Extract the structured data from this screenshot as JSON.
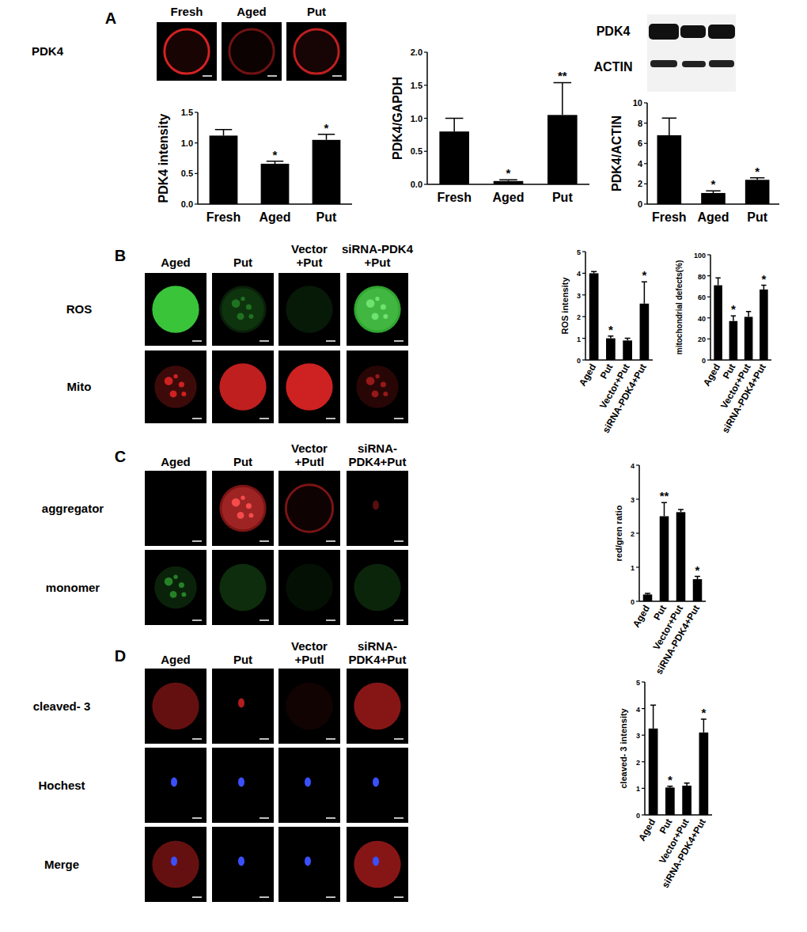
{
  "chart_data": [
    {
      "type": "bar",
      "y_label": "PDK4 intensity",
      "categories": [
        "Fresh",
        "Aged",
        "Put"
      ],
      "values": [
        1.12,
        0.66,
        1.05
      ],
      "errors": [
        0.1,
        0.04,
        0.09
      ],
      "significance": [
        null,
        "*",
        "*"
      ],
      "color": "#000000",
      "ylim": [
        0,
        1.5
      ],
      "yticks": [
        {
          "value": 0,
          "label": "0.0"
        },
        0.5,
        {
          "value": 1,
          "label": "1.0"
        },
        1.5
      ]
    },
    {
      "type": "bar",
      "y_label": "PDK4/GAPDH",
      "categories": [
        "Fresh",
        "Aged",
        "Put"
      ],
      "values": [
        0.8,
        0.05,
        1.05
      ],
      "errors": [
        0.2,
        0.02,
        0.49
      ],
      "significance": [
        null,
        "*",
        "**"
      ],
      "color": "#000000",
      "ylim": [
        0,
        2
      ],
      "yticks": [
        {
          "value": 0,
          "label": "0.0"
        },
        0.5,
        {
          "value": 1,
          "label": "1.0"
        },
        1.5,
        {
          "value": 2,
          "label": "2.0"
        }
      ]
    },
    {
      "type": "bar",
      "y_label": "PDK4/ACTIN",
      "categories": [
        "Fresh",
        "Aged",
        "Put"
      ],
      "values": [
        6.8,
        1.1,
        2.4
      ],
      "errors": [
        1.7,
        0.2,
        0.2
      ],
      "significance": [
        null,
        "*",
        "*"
      ],
      "color": "#000000",
      "ylim": [
        0,
        10
      ],
      "yticks": [
        0,
        2,
        4,
        6,
        8,
        10
      ]
    },
    {
      "type": "bar",
      "y_label": "ROS intensity",
      "categories": [
        "Aged",
        "Put",
        "Vector+Put",
        "siRNA-PDK4+Put"
      ],
      "values": [
        4.0,
        1.0,
        0.9,
        2.6
      ],
      "errors": [
        0.08,
        0.1,
        0.1,
        1.0
      ],
      "significance": [
        null,
        "*",
        null,
        "*"
      ],
      "color": "#000000",
      "ylim": [
        0,
        5
      ],
      "yticks": [
        0,
        1,
        2,
        3,
        4,
        5
      ]
    },
    {
      "type": "bar",
      "y_label": "mitochondrial defects(%)",
      "categories": [
        "Aged",
        "Put",
        "Vector+Put",
        "siRNA-PDK4+Put"
      ],
      "values": [
        71,
        37,
        41,
        67
      ],
      "errors": [
        7,
        5,
        5,
        4
      ],
      "significance": [
        null,
        "*",
        null,
        "*"
      ],
      "color": "#000000",
      "ylim": [
        0,
        100
      ],
      "yticks": [
        0,
        20,
        40,
        60,
        80,
        100
      ]
    },
    {
      "type": "bar",
      "y_label": "red/gren ratio",
      "categories": [
        "Aged",
        "Put",
        "Vector+Put",
        "siRNA-PDK4+Put"
      ],
      "values": [
        0.2,
        2.5,
        2.62,
        0.65
      ],
      "errors": [
        0.03,
        0.4,
        0.08,
        0.08
      ],
      "significance": [
        null,
        "**",
        null,
        "*"
      ],
      "color": "#000000",
      "ylim": [
        0,
        4
      ],
      "yticks": [
        0,
        1,
        2,
        3,
        4
      ]
    },
    {
      "type": "bar",
      "y_label": "cleaved- 3 intensity",
      "categories": [
        "Aged",
        "Put",
        "Vector+Put",
        "siRNA-PDK4+Put"
      ],
      "values": [
        3.25,
        1.03,
        1.1,
        3.1
      ],
      "errors": [
        0.88,
        0.05,
        0.1,
        0.5
      ],
      "significance": [
        null,
        "*",
        null,
        "*"
      ],
      "color": "#000000",
      "ylim": [
        0,
        5
      ],
      "yticks": [
        0,
        1,
        2,
        3,
        4,
        5
      ]
    }
  ],
  "figure": {
    "panels": [
      {
        "letter": "A",
        "columns": [
          [
            "Fresh"
          ],
          [
            "Aged"
          ],
          [
            "Put"
          ]
        ],
        "rows": [
          "PDK4"
        ]
      },
      {
        "letter": "B",
        "columns": [
          [
            "Aged"
          ],
          [
            "Put"
          ],
          [
            "Vector",
            "+Put"
          ],
          [
            "siRNA-PDK4",
            "+Put"
          ]
        ],
        "rows": [
          "ROS",
          "Mito"
        ]
      },
      {
        "letter": "C",
        "columns": [
          [
            "Aged"
          ],
          [
            "Put"
          ],
          [
            "Vector",
            "+Putl"
          ],
          [
            "siRNA-",
            "PDK4+Put"
          ]
        ],
        "rows": [
          "aggregator",
          "monomer"
        ]
      },
      {
        "letter": "D",
        "columns": [
          [
            "Aged"
          ],
          [
            "Put"
          ],
          [
            "Vector",
            "+Putl"
          ],
          [
            "siRNA-",
            "PDK4+Put"
          ]
        ],
        "rows": [
          "cleaved- 3",
          "Hochest",
          "Merge"
        ]
      }
    ],
    "blot": [
      "PDK4",
      "ACTIN"
    ]
  }
}
